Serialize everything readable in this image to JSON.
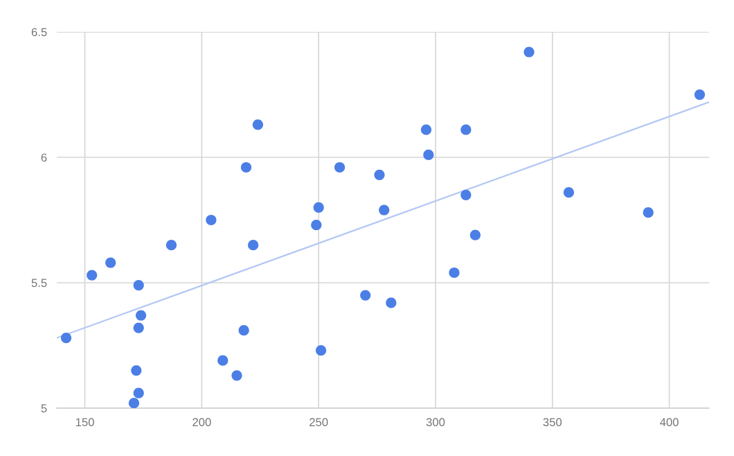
{
  "chart_data": {
    "type": "scatter",
    "xlim": [
      138,
      417
    ],
    "ylim": [
      5,
      6.5
    ],
    "xticks": [
      150,
      200,
      250,
      300,
      350,
      400
    ],
    "yticks": [
      5,
      5.5,
      6,
      6.5
    ],
    "grid": true,
    "series": [
      {
        "color": "#4b7fe6",
        "marker": "circle",
        "x": [
          142,
          153,
          161,
          173,
          174,
          173,
          172,
          173,
          171,
          187,
          204,
          209,
          215,
          218,
          219,
          222,
          224,
          249,
          250,
          251,
          259,
          270,
          276,
          278,
          281,
          296,
          297,
          308,
          313,
          313,
          317,
          340,
          357,
          391,
          413
        ],
        "values": [
          5.28,
          5.53,
          5.58,
          5.49,
          5.37,
          5.32,
          5.15,
          5.06,
          5.02,
          5.65,
          5.75,
          5.19,
          5.13,
          5.31,
          5.96,
          5.65,
          6.13,
          5.73,
          5.8,
          5.23,
          5.96,
          5.45,
          5.93,
          5.79,
          5.42,
          6.11,
          6.01,
          5.54,
          6.11,
          5.85,
          5.69,
          6.42,
          5.86,
          5.78,
          6.25
        ]
      },
      {
        "type": "line",
        "color": "#b4c8f4",
        "x": [
          138,
          417
        ],
        "values": [
          5.28,
          6.22
        ]
      }
    ]
  }
}
